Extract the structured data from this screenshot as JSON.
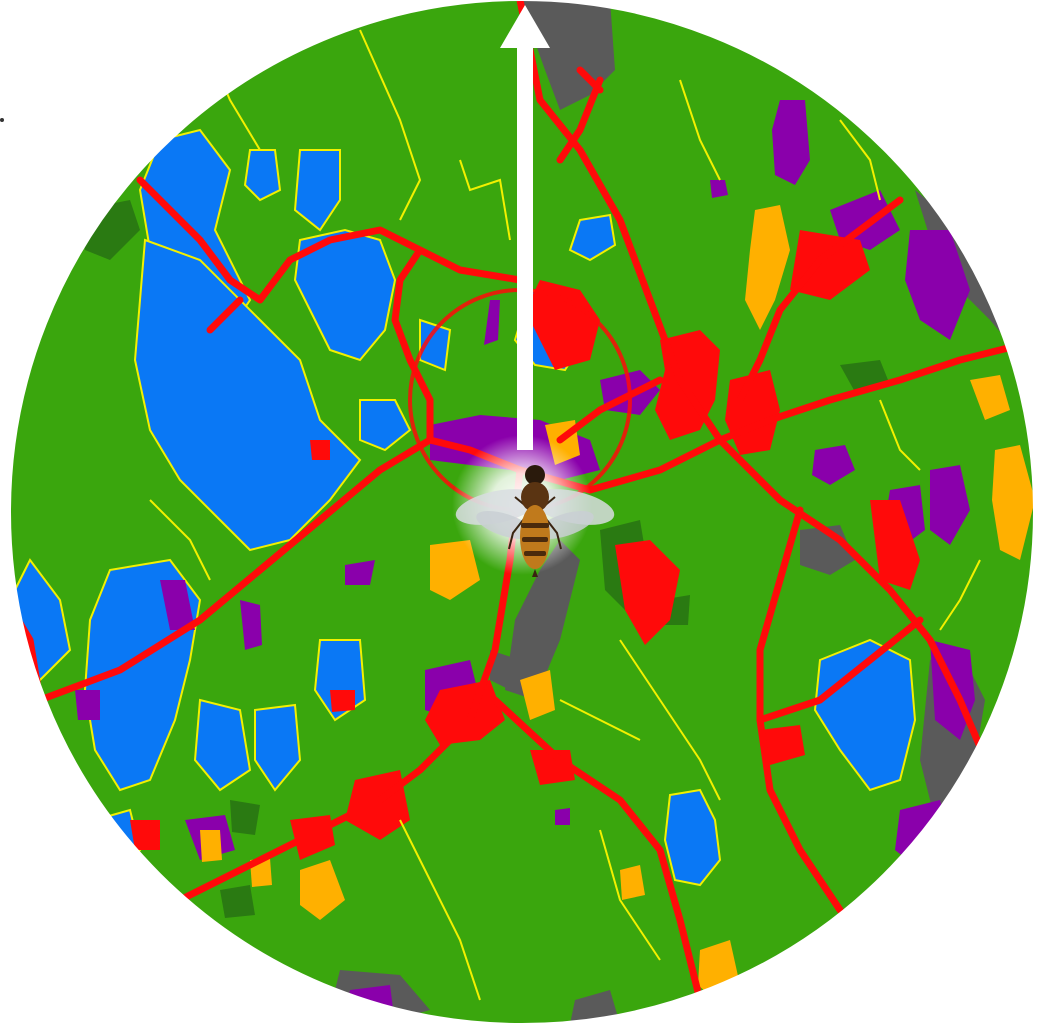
{
  "map": {
    "shape": "circular-radar-view",
    "land_cover_classes": [
      {
        "name": "forest-grassland",
        "color": "#3aa60d"
      },
      {
        "name": "water",
        "color": "#0a78f5"
      },
      {
        "name": "developed-road",
        "color": "#ff0a0a"
      },
      {
        "name": "wetland-dark-forest",
        "color": "#2a7a12"
      },
      {
        "name": "agriculture",
        "color": "#8a00ab"
      },
      {
        "name": "crop-pasture",
        "color": "#ffb000"
      },
      {
        "name": "barren-rock",
        "color": "#5a5a5a"
      },
      {
        "name": "parcel-outline",
        "color": "#f2f000"
      }
    ]
  },
  "heading_arrow": {
    "icon": "north-arrow-icon",
    "color": "#ffffff",
    "direction": "up"
  },
  "center_marker": {
    "icon": "honeybee-icon",
    "glow_color": "#ffffff"
  }
}
